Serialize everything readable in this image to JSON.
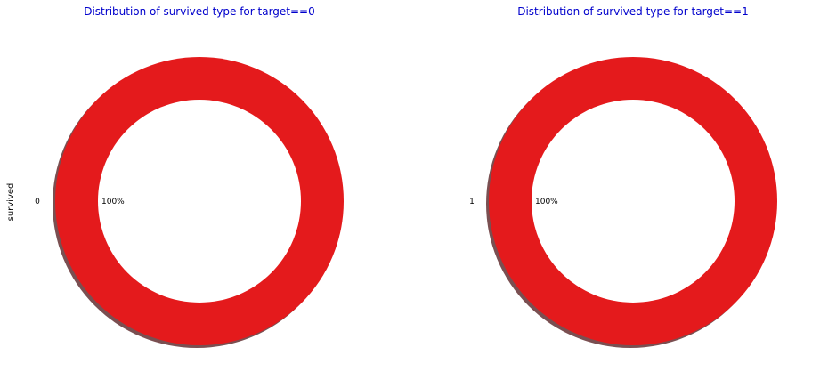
{
  "chart_data": [
    {
      "type": "pie",
      "title": "Distribution of survived type for target==0",
      "ylabel": "survived",
      "categories": [
        "0"
      ],
      "values": [
        100
      ],
      "percent_labels": [
        "100%"
      ],
      "donut": true,
      "shadow": true,
      "colors": [
        "#e41a1c"
      ]
    },
    {
      "type": "pie",
      "title": "Distribution of survived type for target==1",
      "ylabel": "",
      "categories": [
        "1"
      ],
      "values": [
        100
      ],
      "percent_labels": [
        "100%"
      ],
      "donut": true,
      "shadow": true,
      "colors": [
        "#e41a1c"
      ]
    }
  ]
}
